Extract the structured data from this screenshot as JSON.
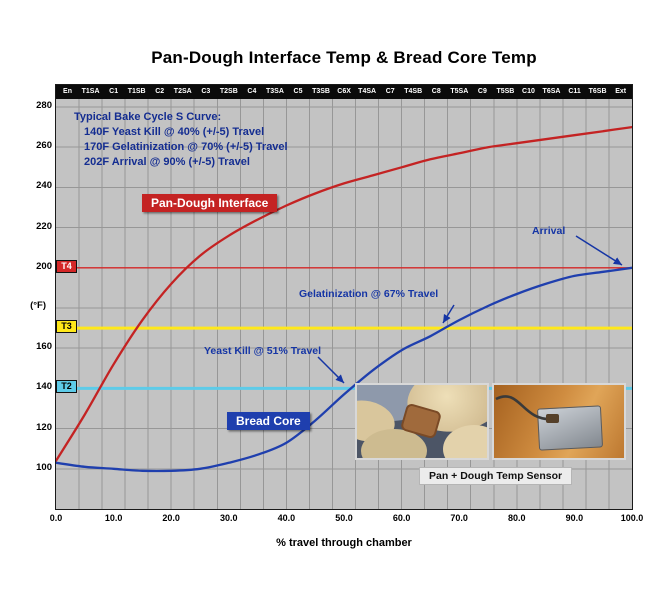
{
  "title": "Pan-Dough Interface Temp & Bread Core Temp",
  "colors": {
    "pan_dough": "#c42323",
    "bread_core": "#1f3fae",
    "annotation": "#1535a5",
    "plot_background": "#c3c3c3",
    "gridline": "#979797"
  },
  "chart_data": {
    "type": "line",
    "title": "Pan-Dough Interface Temp & Bread Core Temp",
    "xlabel": "% travel through chamber",
    "ylabel": "(°F)",
    "ylabel_pos": 180,
    "ylim": [
      80,
      284
    ],
    "xlim": [
      0,
      100
    ],
    "grid": true,
    "yticks": [
      280,
      260,
      240,
      220,
      200,
      160,
      140,
      120,
      100
    ],
    "ygrid_min": 100,
    "ygrid_max": 280,
    "ygrid_step": 20,
    "xticks": [
      "0.0",
      "10.0",
      "20.0",
      "30.0",
      "40.0",
      "50.0",
      "60.0",
      "70.0",
      "80.0",
      "90.0",
      "100.0"
    ],
    "zone_labels": [
      "En",
      "T1SA",
      "C1",
      "T1SB",
      "C2",
      "T2SA",
      "C3",
      "T2SB",
      "C4",
      "T3SA",
      "C5",
      "T3SB",
      "C6X",
      "T4SA",
      "C7",
      "T4SB",
      "C8",
      "T5SA",
      "C9",
      "T5SB",
      "C10",
      "T6SA",
      "C11",
      "T6SB",
      "Ext"
    ],
    "x": [
      0,
      5,
      10,
      15,
      20,
      25,
      30,
      35,
      40,
      45,
      50,
      55,
      60,
      65,
      70,
      75,
      80,
      85,
      90,
      95,
      100
    ],
    "series": [
      {
        "name": "Pan-Dough Interface",
        "color": "#c42323",
        "values": [
          104,
          127,
          152,
          174,
          192,
          206,
          216,
          224,
          231,
          237,
          242,
          246,
          250,
          254,
          257,
          260,
          262,
          264,
          266,
          268,
          270
        ]
      },
      {
        "name": "Bread Core",
        "color": "#1f3fae",
        "values": [
          103,
          101,
          100,
          99,
          99,
          100,
          103,
          107,
          113,
          124,
          137,
          149,
          159,
          166,
          174,
          181,
          187,
          192,
          196,
          198,
          200
        ]
      }
    ],
    "marker_lines": [
      {
        "label": "T4",
        "value": 200,
        "color": "#d42727",
        "text_color": "#ffffff",
        "width": 1.4
      },
      {
        "label": "T3",
        "value": 170,
        "color": "#ffe81a",
        "text_color": "#000000",
        "width": 3
      },
      {
        "label": "T2",
        "value": 140,
        "color": "#5ecbe8",
        "text_color": "#000000",
        "width": 3
      }
    ],
    "legend_position": "inline-labels"
  },
  "info_block": {
    "lines": [
      "Typical Bake Cycle S Curve:",
      "140F Yeast Kill @ 40% (+/-5) Travel",
      "170F Gelatinization @ 70% (+/-5) Travel",
      "202F Arrival @ 90% (+/-5) Travel"
    ]
  },
  "series_tags": {
    "pan_dough": "Pan-Dough Interface",
    "bread_core": "Bread Core"
  },
  "annotations": {
    "yeast_kill": "Yeast Kill @ 51% Travel",
    "gelatinization": "Gelatinization @ 67% Travel",
    "arrival": "Arrival"
  },
  "photo_caption": "Pan + Dough Temp Sensor"
}
